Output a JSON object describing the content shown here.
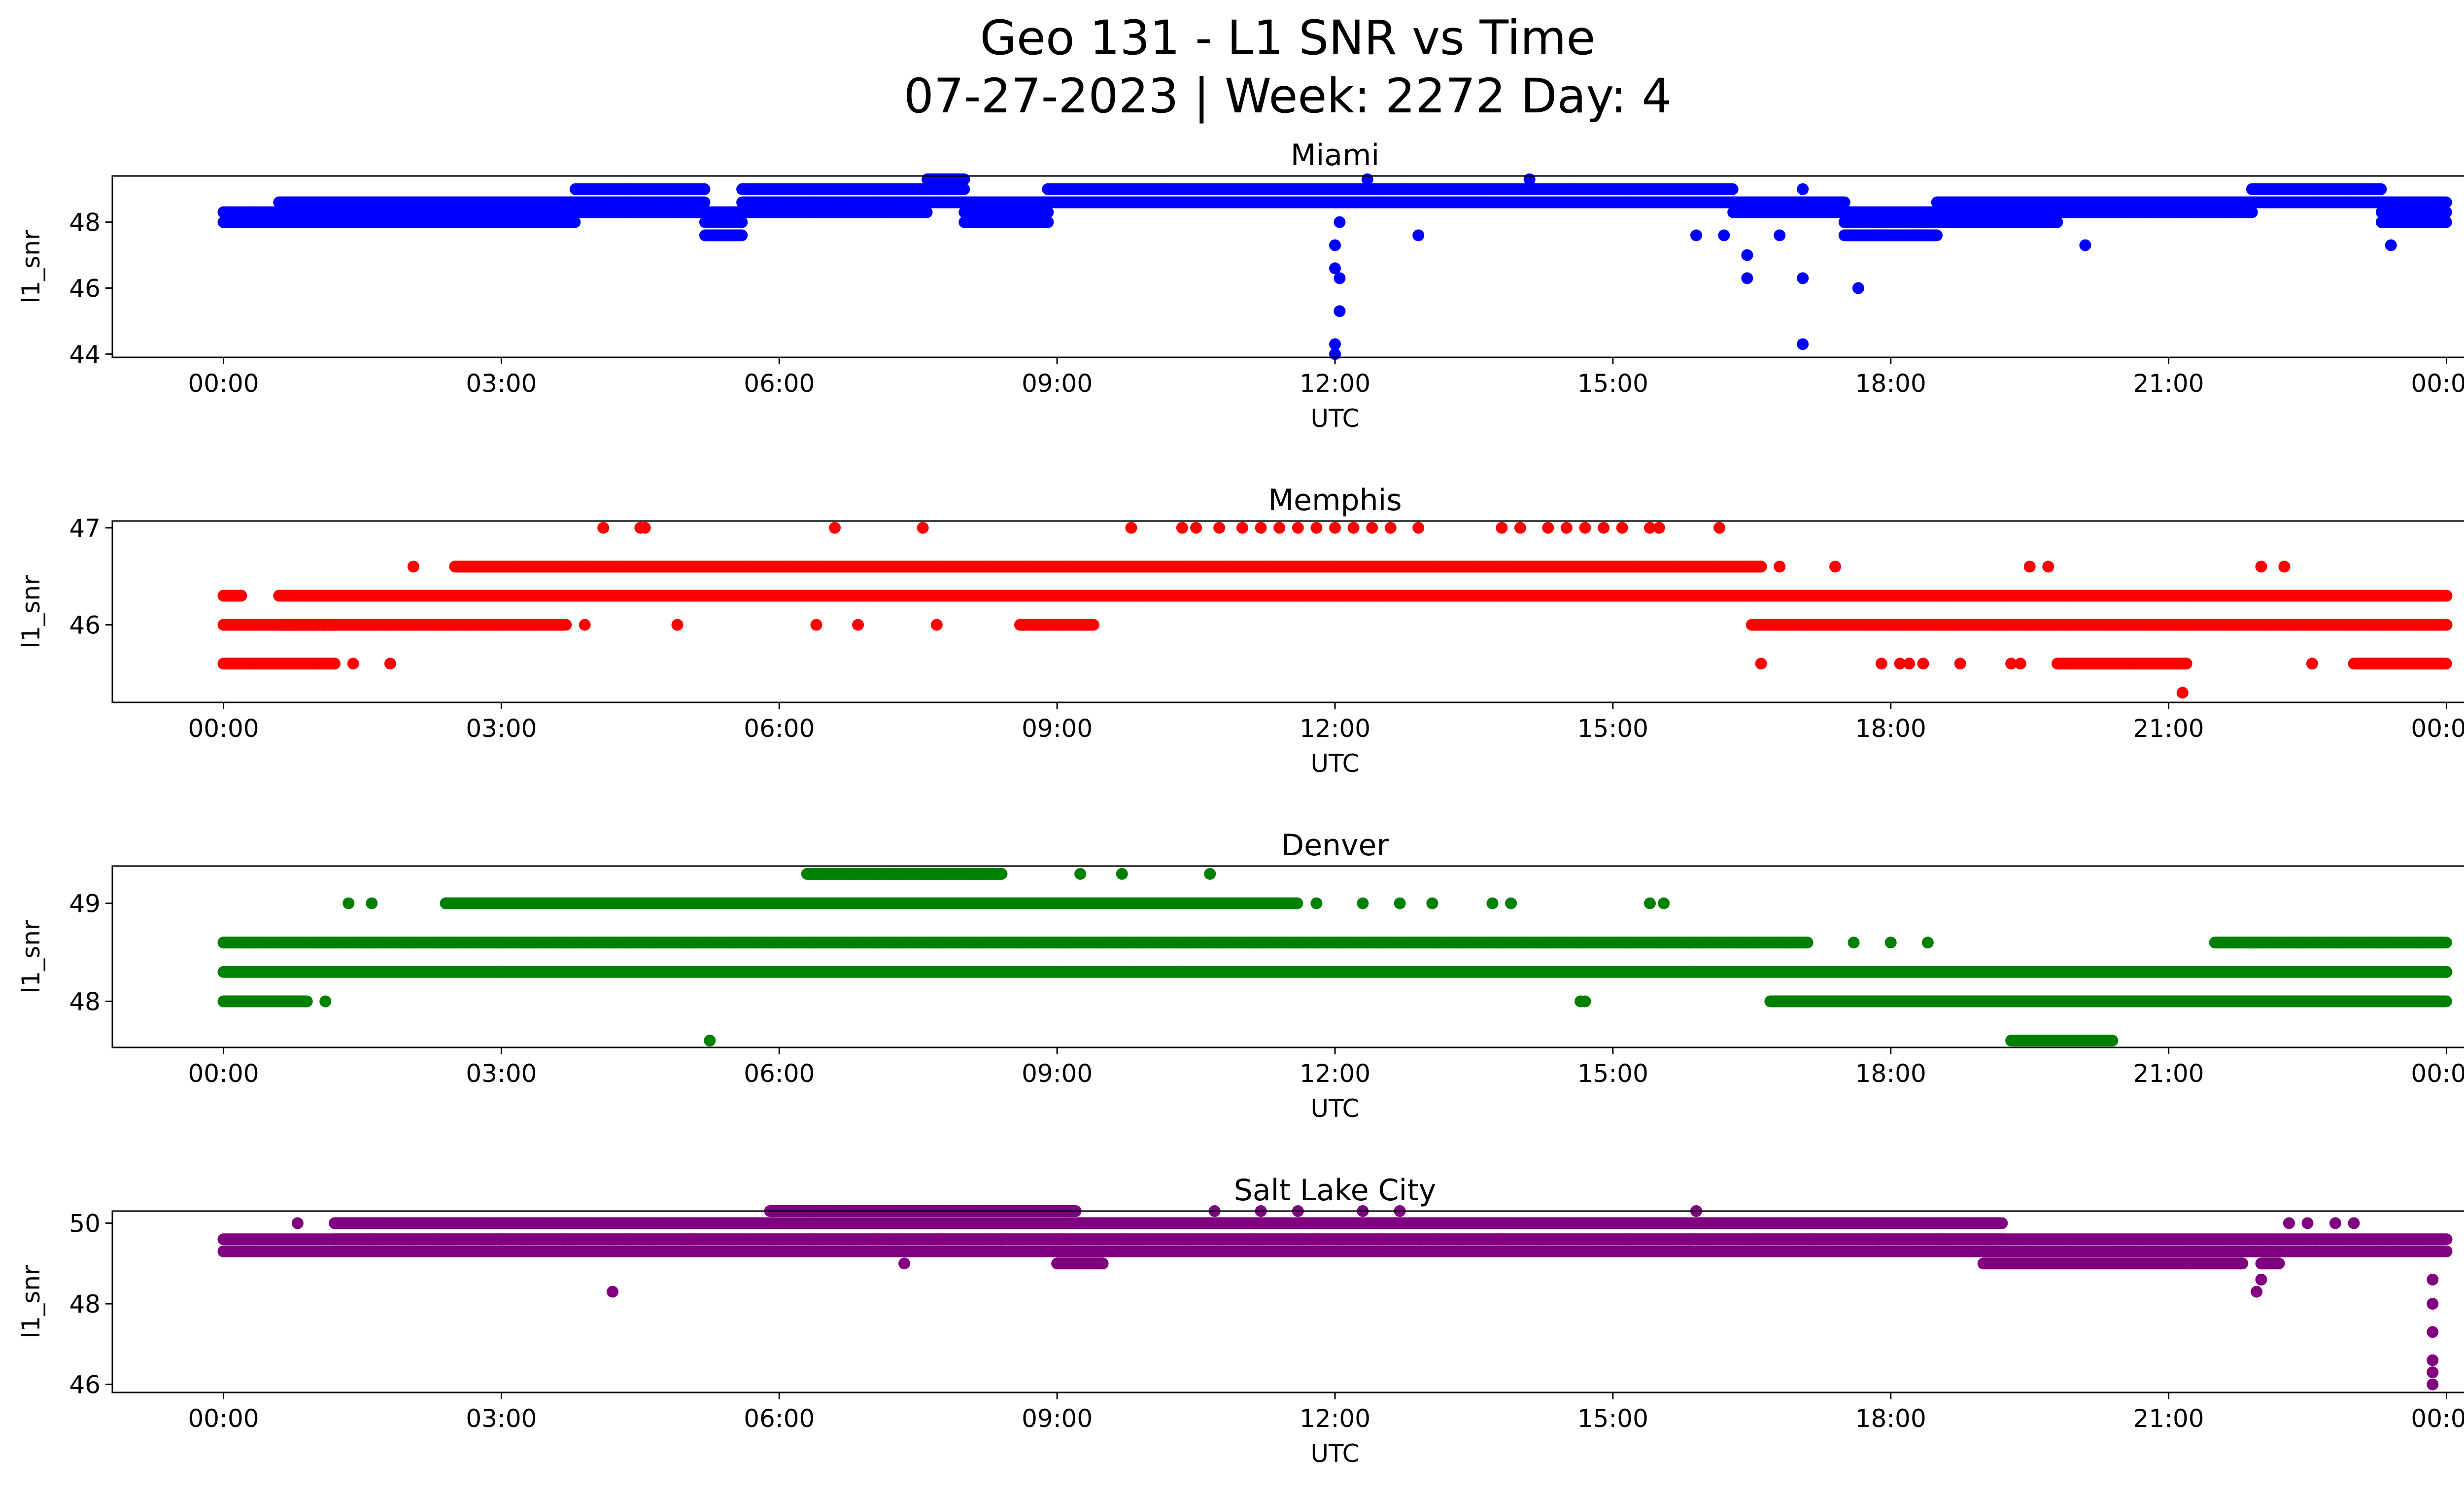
{
  "figure": {
    "title_line1": "Geo 131 - L1 SNR vs Time",
    "title_line2": "07-27-2023 | Week: 2272 Day: 4"
  },
  "chart_data": [
    {
      "type": "scatter",
      "title": "Miami",
      "xlabel": "UTC",
      "ylabel": "l1_snr",
      "color": "#0000ff",
      "x_ticks": [
        "00:00",
        "03:00",
        "06:00",
        "09:00",
        "12:00",
        "15:00",
        "18:00",
        "21:00",
        "00:00"
      ],
      "y_ticks": [
        44,
        46,
        48
      ],
      "ylim": [
        43.9,
        49.4
      ],
      "xlim_hours": [
        -1.2,
        25.2
      ],
      "bands": [
        {
          "from": 0.0,
          "to": 0.6,
          "values": [
            48.0,
            48.3
          ]
        },
        {
          "from": 0.6,
          "to": 3.8,
          "values": [
            48.0,
            48.3,
            48.6
          ]
        },
        {
          "from": 3.8,
          "to": 5.2,
          "values": [
            48.3,
            48.6,
            49.0
          ]
        },
        {
          "from": 5.2,
          "to": 5.6,
          "values": [
            47.6,
            48.0,
            48.3
          ]
        },
        {
          "from": 5.6,
          "to": 7.6,
          "values": [
            48.3,
            48.6,
            49.0
          ]
        },
        {
          "from": 7.6,
          "to": 8.0,
          "values": [
            48.6,
            49.0,
            49.3
          ]
        },
        {
          "from": 8.0,
          "to": 8.9,
          "values": [
            48.0,
            48.3,
            48.6
          ]
        },
        {
          "from": 8.9,
          "to": 16.3,
          "values": [
            48.6,
            49.0
          ]
        },
        {
          "from": 16.3,
          "to": 17.5,
          "values": [
            48.3,
            48.6
          ]
        },
        {
          "from": 17.5,
          "to": 18.5,
          "values": [
            47.6,
            48.0,
            48.3
          ]
        },
        {
          "from": 18.5,
          "to": 19.8,
          "values": [
            48.0,
            48.3,
            48.6
          ]
        },
        {
          "from": 19.8,
          "to": 21.9,
          "values": [
            48.3,
            48.6
          ]
        },
        {
          "from": 21.9,
          "to": 23.3,
          "values": [
            48.6,
            49.0
          ]
        },
        {
          "from": 23.3,
          "to": 24.0,
          "values": [
            48.0,
            48.3,
            48.6
          ]
        }
      ],
      "points": [
        {
          "t": 12.0,
          "v": 47.3
        },
        {
          "t": 12.0,
          "v": 46.6
        },
        {
          "t": 12.05,
          "v": 46.3
        },
        {
          "t": 12.05,
          "v": 45.3
        },
        {
          "t": 12.0,
          "v": 44.3
        },
        {
          "t": 12.0,
          "v": 44.0
        },
        {
          "t": 12.05,
          "v": 48.0
        },
        {
          "t": 12.9,
          "v": 47.6
        },
        {
          "t": 14.1,
          "v": 49.3
        },
        {
          "t": 12.35,
          "v": 49.3
        },
        {
          "t": 15.9,
          "v": 47.6
        },
        {
          "t": 16.2,
          "v": 47.6
        },
        {
          "t": 16.45,
          "v": 47.0
        },
        {
          "t": 16.45,
          "v": 46.3
        },
        {
          "t": 16.8,
          "v": 47.6
        },
        {
          "t": 17.05,
          "v": 46.3
        },
        {
          "t": 17.05,
          "v": 44.3
        },
        {
          "t": 17.05,
          "v": 49.0
        },
        {
          "t": 17.65,
          "v": 46.0
        },
        {
          "t": 20.1,
          "v": 47.3
        },
        {
          "t": 23.4,
          "v": 47.3
        },
        {
          "t": 4.35,
          "v": 49.0
        },
        {
          "t": 5.1,
          "v": 49.0
        }
      ]
    },
    {
      "type": "scatter",
      "title": "Memphis",
      "xlabel": "UTC",
      "ylabel": "l1_snr",
      "color": "#ff0000",
      "x_ticks": [
        "00:00",
        "03:00",
        "06:00",
        "09:00",
        "12:00",
        "15:00",
        "18:00",
        "21:00",
        "00:00"
      ],
      "y_ticks": [
        46,
        47
      ],
      "ylim": [
        45.2,
        47.07
      ],
      "xlim_hours": [
        -1.2,
        25.2
      ],
      "bands": [
        {
          "from": 0.0,
          "to": 1.2,
          "values": [
            45.6,
            46.0
          ]
        },
        {
          "from": 0.0,
          "to": 0.2,
          "values": [
            46.3
          ]
        },
        {
          "from": 0.6,
          "to": 3.6,
          "values": [
            46.0,
            46.3
          ]
        },
        {
          "from": 2.5,
          "to": 16.6,
          "values": [
            46.6
          ]
        },
        {
          "from": 0.9,
          "to": 24.0,
          "values": [
            46.3
          ]
        },
        {
          "from": 3.6,
          "to": 3.7,
          "values": [
            46.0
          ]
        },
        {
          "from": 8.6,
          "to": 9.4,
          "values": [
            46.0
          ]
        },
        {
          "from": 16.5,
          "to": 24.0,
          "values": [
            46.0
          ]
        },
        {
          "from": 19.8,
          "to": 21.2,
          "values": [
            45.6
          ]
        },
        {
          "from": 23.0,
          "to": 24.0,
          "values": [
            45.6
          ]
        }
      ],
      "points": [
        {
          "t": 1.4,
          "v": 45.6
        },
        {
          "t": 1.8,
          "v": 45.6
        },
        {
          "t": 2.05,
          "v": 46.6
        },
        {
          "t": 4.1,
          "v": 47.0
        },
        {
          "t": 4.5,
          "v": 47.0
        },
        {
          "t": 4.55,
          "v": 47.0
        },
        {
          "t": 3.9,
          "v": 46.0
        },
        {
          "t": 4.9,
          "v": 46.0
        },
        {
          "t": 6.4,
          "v": 46.0
        },
        {
          "t": 6.6,
          "v": 47.0
        },
        {
          "t": 6.85,
          "v": 46.0
        },
        {
          "t": 7.55,
          "v": 47.0
        },
        {
          "t": 7.7,
          "v": 46.0
        },
        {
          "t": 9.8,
          "v": 47.0
        },
        {
          "t": 10.35,
          "v": 47.0
        },
        {
          "t": 10.5,
          "v": 47.0
        },
        {
          "t": 10.75,
          "v": 47.0
        },
        {
          "t": 11.0,
          "v": 47.0
        },
        {
          "t": 11.2,
          "v": 47.0
        },
        {
          "t": 11.4,
          "v": 47.0
        },
        {
          "t": 11.6,
          "v": 47.0
        },
        {
          "t": 11.8,
          "v": 47.0
        },
        {
          "t": 12.0,
          "v": 47.0
        },
        {
          "t": 12.2,
          "v": 47.0
        },
        {
          "t": 12.4,
          "v": 47.0
        },
        {
          "t": 12.6,
          "v": 47.0
        },
        {
          "t": 12.9,
          "v": 47.0
        },
        {
          "t": 13.8,
          "v": 47.0
        },
        {
          "t": 14.0,
          "v": 47.0
        },
        {
          "t": 14.3,
          "v": 47.0
        },
        {
          "t": 14.5,
          "v": 47.0
        },
        {
          "t": 14.7,
          "v": 47.0
        },
        {
          "t": 14.9,
          "v": 47.0
        },
        {
          "t": 15.1,
          "v": 47.0
        },
        {
          "t": 15.4,
          "v": 47.0
        },
        {
          "t": 15.5,
          "v": 47.0
        },
        {
          "t": 16.15,
          "v": 47.0
        },
        {
          "t": 16.6,
          "v": 45.6
        },
        {
          "t": 16.8,
          "v": 46.6
        },
        {
          "t": 17.4,
          "v": 46.6
        },
        {
          "t": 17.9,
          "v": 45.6
        },
        {
          "t": 18.1,
          "v": 45.6
        },
        {
          "t": 18.2,
          "v": 45.6
        },
        {
          "t": 18.35,
          "v": 45.6
        },
        {
          "t": 18.75,
          "v": 45.6
        },
        {
          "t": 19.3,
          "v": 45.6
        },
        {
          "t": 19.4,
          "v": 45.6
        },
        {
          "t": 19.5,
          "v": 46.6
        },
        {
          "t": 19.7,
          "v": 46.6
        },
        {
          "t": 21.15,
          "v": 45.3
        },
        {
          "t": 22.0,
          "v": 46.6
        },
        {
          "t": 22.25,
          "v": 46.6
        },
        {
          "t": 22.55,
          "v": 45.6
        },
        {
          "t": 23.8,
          "v": 46.3
        }
      ]
    },
    {
      "type": "scatter",
      "title": "Denver",
      "xlabel": "UTC",
      "ylabel": "l1_snr",
      "color": "#008000",
      "x_ticks": [
        "00:00",
        "03:00",
        "06:00",
        "09:00",
        "12:00",
        "15:00",
        "18:00",
        "21:00",
        "00:00"
      ],
      "y_ticks": [
        48,
        49
      ],
      "ylim": [
        47.53,
        49.38
      ],
      "xlim_hours": [
        -1.2,
        25.2
      ],
      "bands": [
        {
          "from": 0.0,
          "to": 24.0,
          "values": [
            48.3
          ]
        },
        {
          "from": 0.0,
          "to": 17.1,
          "values": [
            48.6
          ]
        },
        {
          "from": 0.0,
          "to": 0.9,
          "values": [
            48.0
          ]
        },
        {
          "from": 2.4,
          "to": 11.6,
          "values": [
            49.0
          ]
        },
        {
          "from": 6.3,
          "to": 8.4,
          "values": [
            49.3
          ]
        },
        {
          "from": 16.7,
          "to": 24.0,
          "values": [
            48.0
          ]
        },
        {
          "from": 19.3,
          "to": 20.4,
          "values": [
            47.6
          ]
        },
        {
          "from": 21.5,
          "to": 24.0,
          "values": [
            48.6
          ]
        },
        {
          "from": 23.8,
          "to": 24.0,
          "values": [
            48.0
          ]
        }
      ],
      "points": [
        {
          "t": 1.1,
          "v": 48.0
        },
        {
          "t": 1.35,
          "v": 49.0
        },
        {
          "t": 1.6,
          "v": 49.0
        },
        {
          "t": 5.25,
          "v": 47.6
        },
        {
          "t": 9.25,
          "v": 49.3
        },
        {
          "t": 9.7,
          "v": 49.3
        },
        {
          "t": 10.65,
          "v": 49.3
        },
        {
          "t": 10.3,
          "v": 48.3
        },
        {
          "t": 11.8,
          "v": 49.0
        },
        {
          "t": 12.3,
          "v": 49.0
        },
        {
          "t": 12.7,
          "v": 49.0
        },
        {
          "t": 13.05,
          "v": 49.0
        },
        {
          "t": 13.7,
          "v": 49.0
        },
        {
          "t": 13.9,
          "v": 49.0
        },
        {
          "t": 14.65,
          "v": 48.0
        },
        {
          "t": 14.7,
          "v": 48.0
        },
        {
          "t": 15.4,
          "v": 49.0
        },
        {
          "t": 15.55,
          "v": 49.0
        },
        {
          "t": 17.6,
          "v": 48.6
        },
        {
          "t": 18.0,
          "v": 48.6
        },
        {
          "t": 18.4,
          "v": 48.6
        }
      ]
    },
    {
      "type": "scatter",
      "title": "Salt Lake City",
      "xlabel": "UTC",
      "ylabel": "l1_snr",
      "color": "#800080",
      "x_ticks": [
        "00:00",
        "03:00",
        "06:00",
        "09:00",
        "12:00",
        "15:00",
        "18:00",
        "21:00",
        "00:00"
      ],
      "y_ticks": [
        46,
        48,
        50
      ],
      "ylim": [
        45.8,
        50.3
      ],
      "xlim_hours": [
        -1.2,
        25.2
      ],
      "bands": [
        {
          "from": 0.0,
          "to": 24.0,
          "values": [
            49.3,
            49.6
          ]
        },
        {
          "from": 1.2,
          "to": 19.2,
          "values": [
            49.6,
            50.0
          ]
        },
        {
          "from": 5.9,
          "to": 9.2,
          "values": [
            50.3
          ]
        },
        {
          "from": 9.0,
          "to": 9.5,
          "values": [
            49.0
          ]
        },
        {
          "from": 19.0,
          "to": 21.8,
          "values": [
            49.0
          ]
        },
        {
          "from": 22.0,
          "to": 22.2,
          "values": [
            49.0
          ]
        }
      ],
      "points": [
        {
          "t": 0.8,
          "v": 50.0
        },
        {
          "t": 4.2,
          "v": 48.3
        },
        {
          "t": 7.35,
          "v": 49.0
        },
        {
          "t": 10.7,
          "v": 50.3
        },
        {
          "t": 11.2,
          "v": 50.3
        },
        {
          "t": 11.6,
          "v": 50.3
        },
        {
          "t": 12.3,
          "v": 50.3
        },
        {
          "t": 12.7,
          "v": 50.3
        },
        {
          "t": 15.9,
          "v": 50.3
        },
        {
          "t": 21.95,
          "v": 48.3
        },
        {
          "t": 22.0,
          "v": 48.6
        },
        {
          "t": 22.3,
          "v": 50.0
        },
        {
          "t": 22.5,
          "v": 50.0
        },
        {
          "t": 22.8,
          "v": 50.0
        },
        {
          "t": 23.0,
          "v": 50.0
        },
        {
          "t": 23.85,
          "v": 48.6
        },
        {
          "t": 23.85,
          "v": 48.0
        },
        {
          "t": 23.85,
          "v": 47.3
        },
        {
          "t": 23.85,
          "v": 46.6
        },
        {
          "t": 23.85,
          "v": 46.3
        },
        {
          "t": 23.85,
          "v": 46.0
        },
        {
          "t": 23.95,
          "v": 49.3
        }
      ]
    }
  ]
}
